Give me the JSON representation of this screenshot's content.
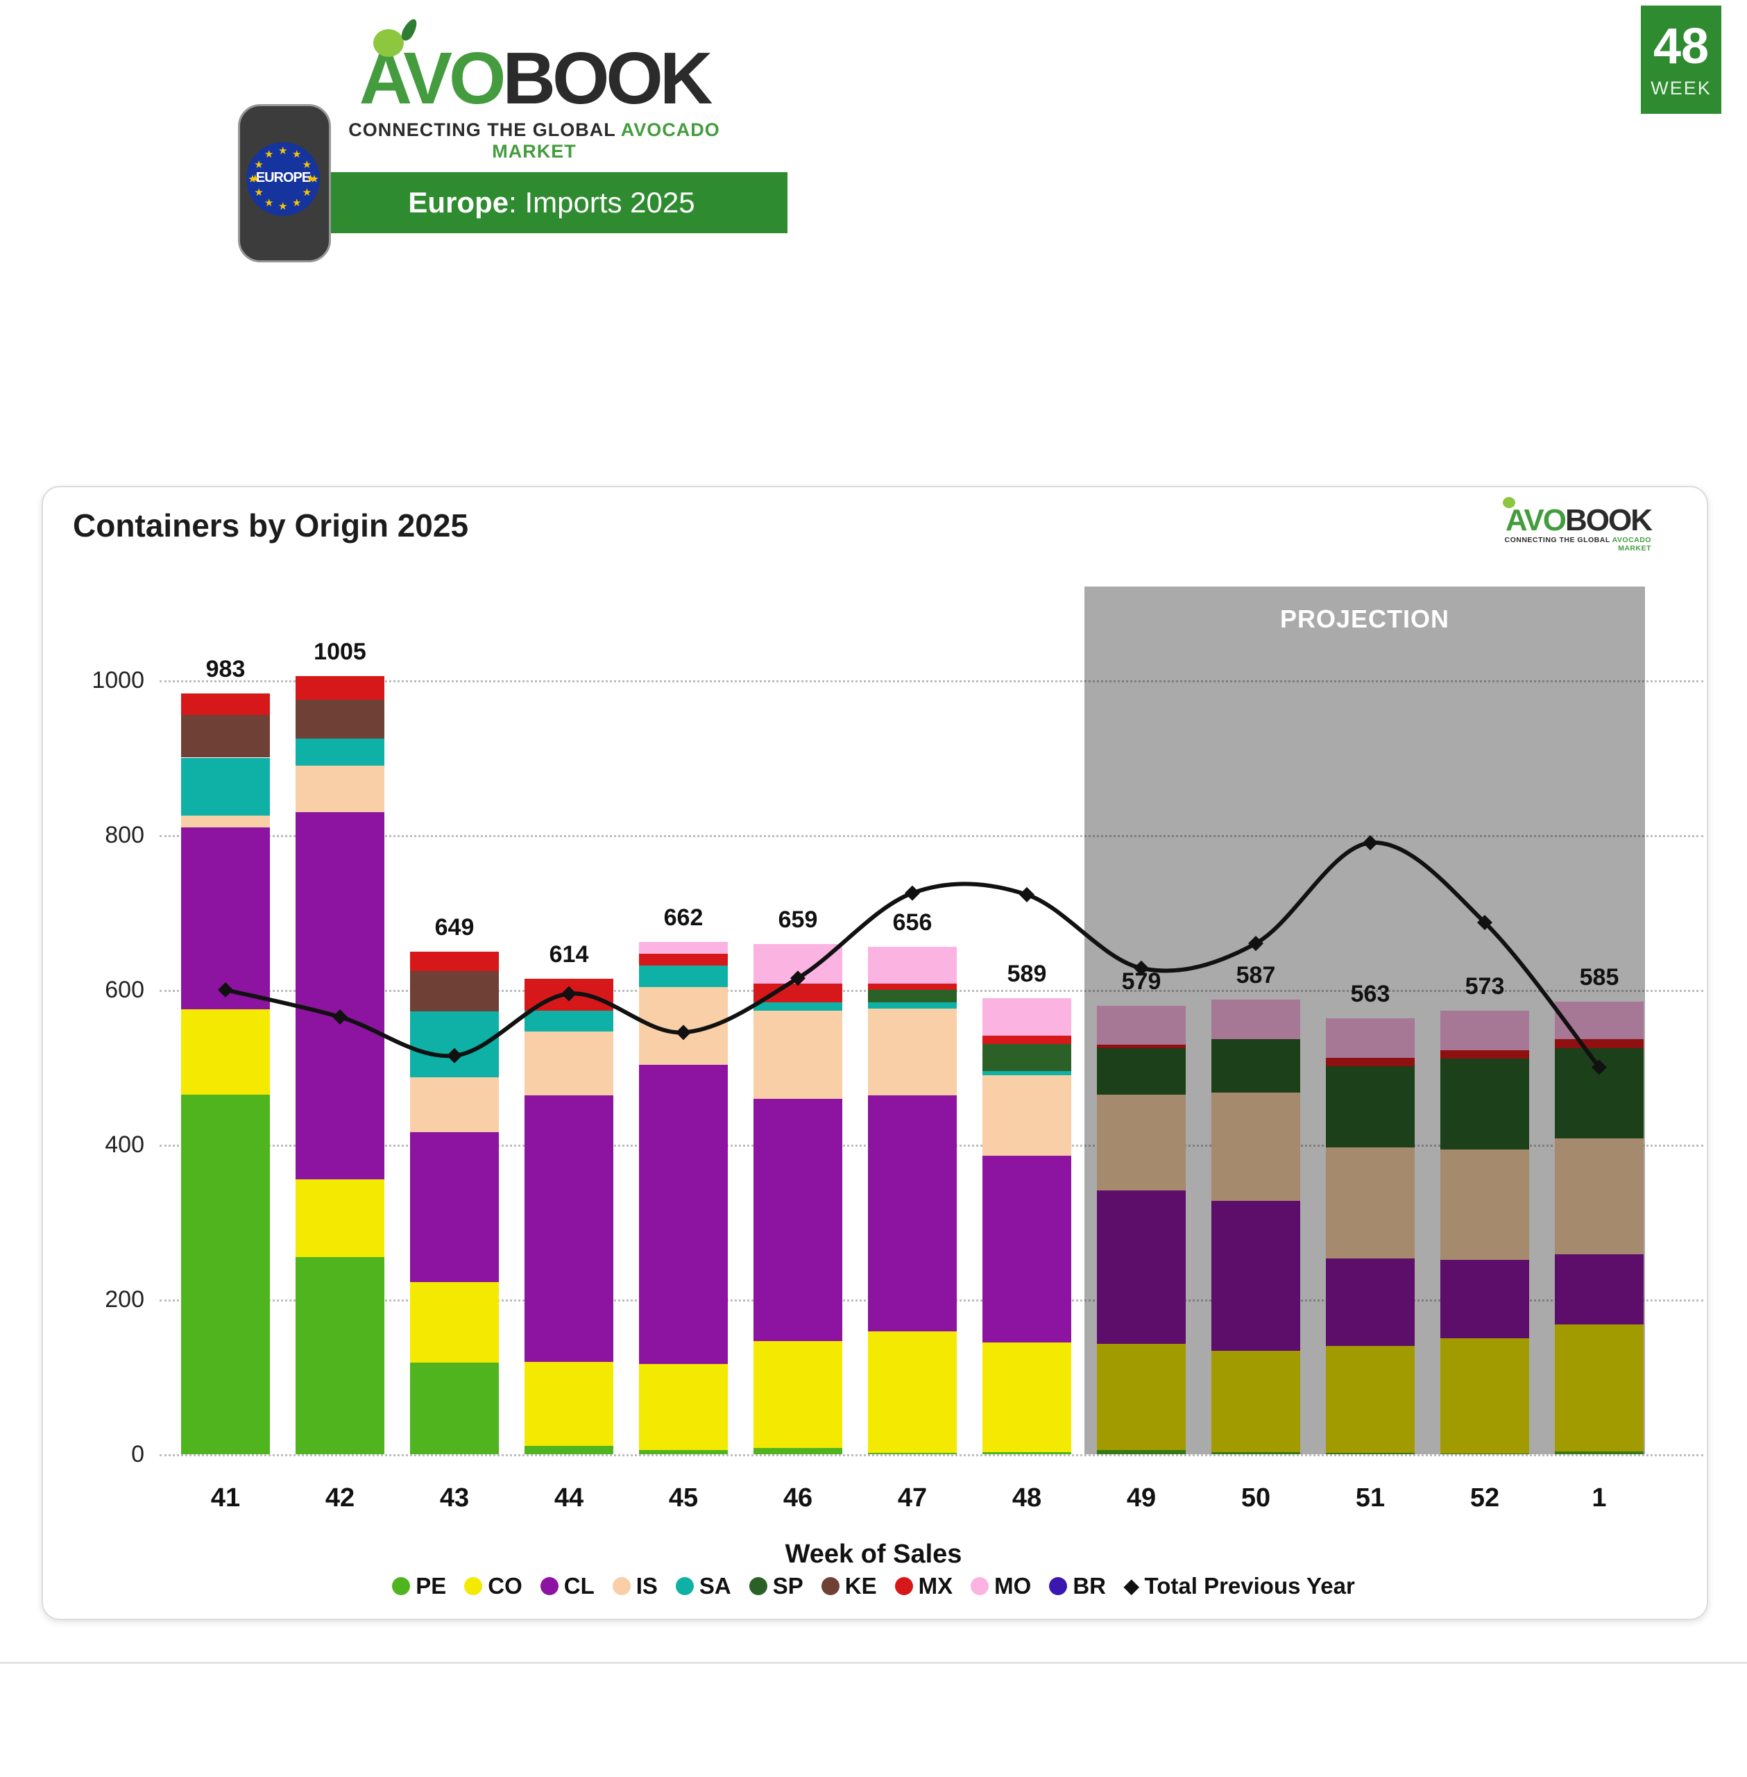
{
  "header": {
    "logo": {
      "avo": "AVO",
      "book": "BOOK",
      "tagline_dark": "CONNECTING THE GLOBAL",
      "tagline_green": "AVOCADO MARKET"
    },
    "region_badge": {
      "label": "EUROPE",
      "star_char": "★"
    },
    "banner": {
      "region_bold": "Europe",
      "rest": ": Imports 2025"
    },
    "week_box": {
      "number": "48",
      "label": "WEEK"
    }
  },
  "card": {
    "title": "Containers by Origin 2025",
    "projection_label": "PROJECTION",
    "xaxis_title": "Week of Sales",
    "line_legend_label": "Total Previous Year",
    "diamond_char": "◆"
  },
  "chart_data": {
    "type": "bar",
    "subtype": "stacked-bars-with-line",
    "title": "Containers by Origin 2025",
    "xlabel": "Week of Sales",
    "ylabel": "",
    "ylim": [
      0,
      1000
    ],
    "yticks": [
      0,
      200,
      400,
      600,
      800,
      1000
    ],
    "grid": "horizontal-dotted",
    "legend_position": "bottom",
    "categories": [
      "41",
      "42",
      "43",
      "44",
      "45",
      "46",
      "47",
      "48",
      "49",
      "50",
      "51",
      "52",
      "1"
    ],
    "projection_categories": [
      "49",
      "50",
      "51",
      "52",
      "1"
    ],
    "totals": [
      983,
      1005,
      649,
      614,
      662,
      659,
      656,
      589,
      579,
      587,
      563,
      573,
      585
    ],
    "series": [
      {
        "name": "PE",
        "color": "#50b41e",
        "values": [
          465,
          255,
          118,
          11,
          5,
          8,
          2,
          3,
          5,
          3,
          2,
          1,
          4
        ]
      },
      {
        "name": "CO",
        "color": "#f4e900",
        "values": [
          110,
          100,
          104,
          108,
          112,
          138,
          157,
          141,
          138,
          131,
          138,
          149,
          164
        ]
      },
      {
        "name": "CL",
        "color": "#8c14a0",
        "values": [
          235,
          475,
          194,
          345,
          386,
          313,
          305,
          242,
          198,
          193,
          113,
          101,
          90
        ]
      },
      {
        "name": "IS",
        "color": "#f8cfa6",
        "values": [
          15,
          60,
          71,
          82,
          101,
          114,
          112,
          104,
          124,
          140,
          143,
          143,
          150
        ]
      },
      {
        "name": "SA",
        "color": "#0fb0a6",
        "values": [
          75,
          35,
          85,
          27,
          27,
          11,
          8,
          5,
          0,
          0,
          0,
          0,
          0
        ]
      },
      {
        "name": "SP",
        "color": "#2b6126",
        "values": [
          0,
          0,
          0,
          0,
          0,
          0,
          16,
          35,
          60,
          69,
          105,
          117,
          117
        ]
      },
      {
        "name": "KE",
        "color": "#6e4036",
        "values": [
          55,
          50,
          52,
          0,
          0,
          0,
          0,
          0,
          0,
          0,
          0,
          0,
          0
        ]
      },
      {
        "name": "MX",
        "color": "#d6181a",
        "values": [
          28,
          30,
          25,
          41,
          16,
          24,
          8,
          11,
          4,
          0,
          11,
          11,
          11
        ]
      },
      {
        "name": "MO",
        "color": "#fbb3e2",
        "values": [
          0,
          0,
          0,
          0,
          15,
          51,
          48,
          48,
          50,
          51,
          51,
          51,
          49
        ]
      },
      {
        "name": "BR",
        "color": "#3a18b0",
        "values": [
          0,
          0,
          0,
          0,
          0,
          0,
          0,
          0,
          0,
          0,
          0,
          0,
          0
        ]
      }
    ],
    "line_series": {
      "name": "Total Previous Year",
      "color": "#111111",
      "values": [
        600,
        565,
        515,
        595,
        545,
        615,
        725,
        723,
        628,
        660,
        790,
        687,
        500
      ]
    }
  }
}
